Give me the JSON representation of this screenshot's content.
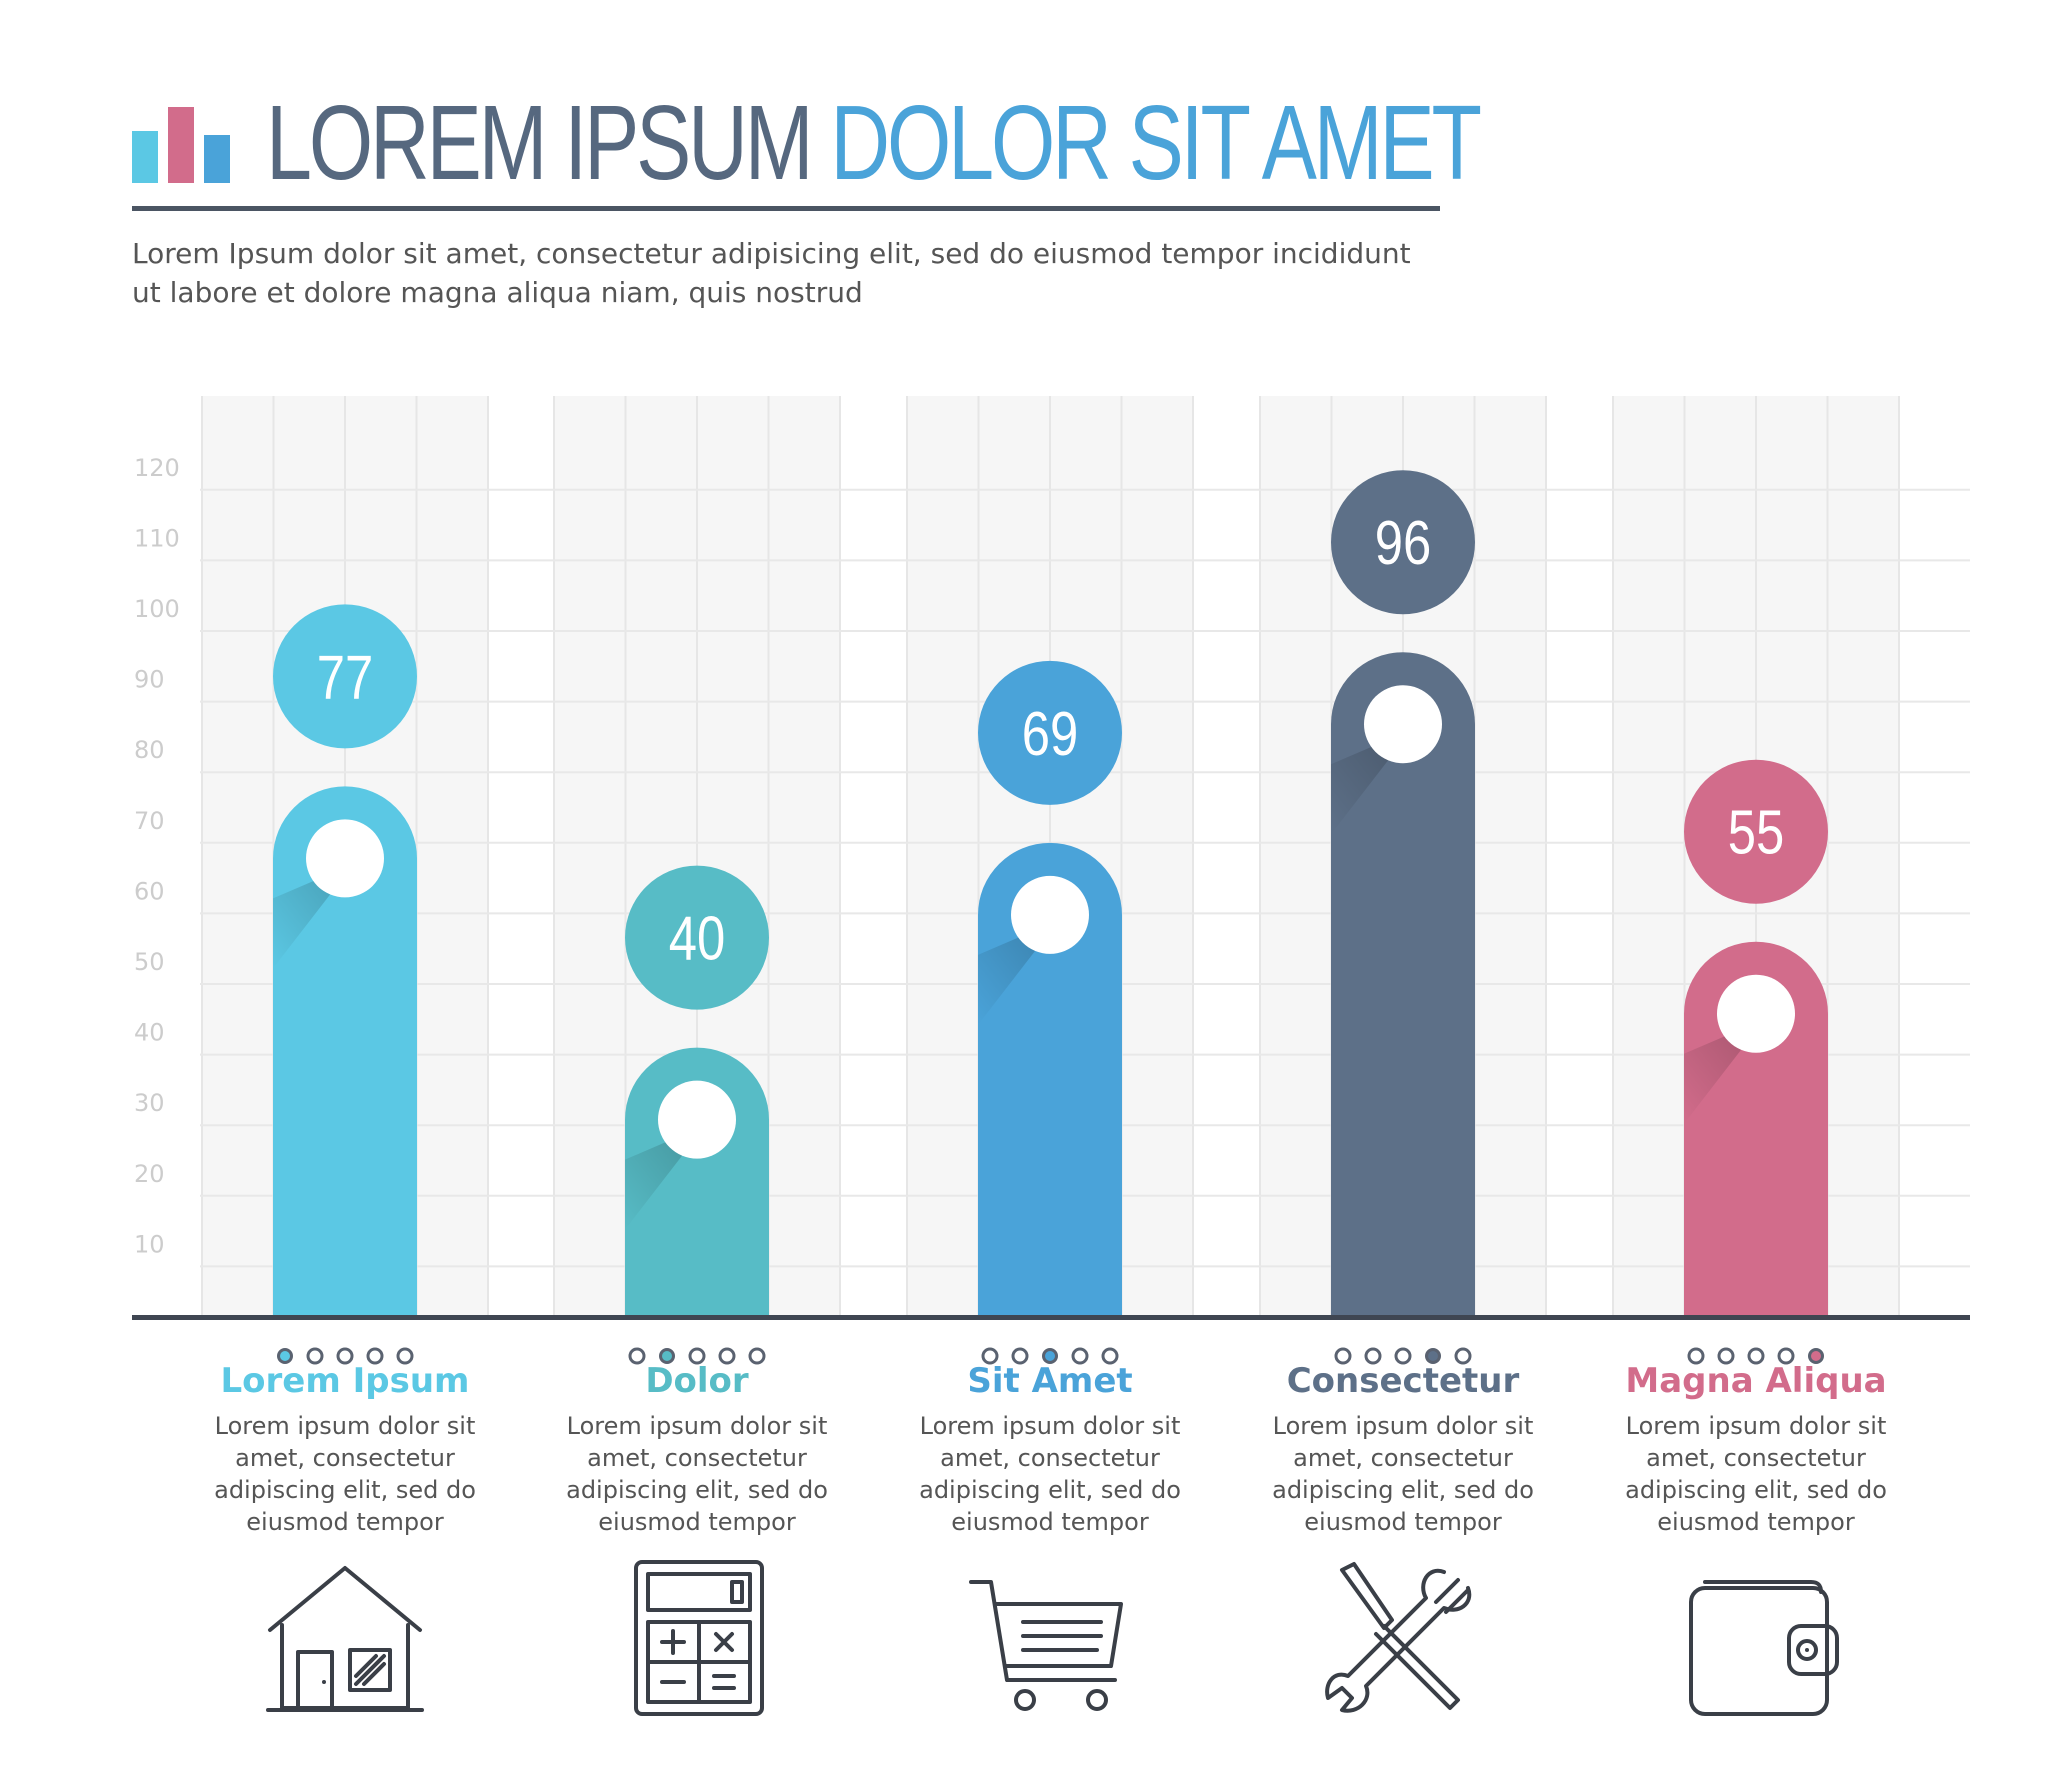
{
  "header": {
    "title_part1": "LOREM IPSUM",
    "title_part2": "DOLOR SIT AMET",
    "subtitle": "Lorem Ipsum dolor sit amet, consectetur adipisicing elit, sed do eiusmod tempor incididunt ut labore et dolore magna aliqua niam, quis nostrud",
    "logo_colors": [
      "#5bc8e4",
      "#d26c8b",
      "#4aa3d9"
    ]
  },
  "chart_data": {
    "type": "bar",
    "title": "LOREM IPSUM DOLOR SIT AMET",
    "categories": [
      "Lorem Ipsum",
      "Dolor",
      "Sit Amet",
      "Consectetur",
      "Magna Aliqua"
    ],
    "values": [
      77,
      40,
      69,
      96,
      55
    ],
    "colors": [
      "#5bc8e4",
      "#57bcc6",
      "#4aa3d9",
      "#5d7088",
      "#d26c8b"
    ],
    "yticks": [
      10,
      20,
      30,
      40,
      50,
      60,
      70,
      80,
      90,
      100,
      110,
      120
    ],
    "ylim": [
      0,
      130
    ],
    "grid": true,
    "legend": "none"
  },
  "items": [
    {
      "title": "Lorem Ipsum",
      "desc": [
        "Lorem ipsum dolor sit",
        "amet, consectetur",
        "adipiscing elit, sed do",
        "eiusmod tempor"
      ],
      "icon": "house-icon",
      "active_dot": 0
    },
    {
      "title": "Dolor",
      "desc": [
        "Lorem ipsum dolor sit",
        "amet, consectetur",
        "adipiscing elit, sed do",
        "eiusmod tempor"
      ],
      "icon": "calculator-icon",
      "active_dot": 1
    },
    {
      "title": "Sit Amet",
      "desc": [
        "Lorem ipsum dolor sit",
        "amet, consectetur",
        "adipiscing elit, sed do",
        "eiusmod tempor"
      ],
      "icon": "shopping-cart-icon",
      "active_dot": 2
    },
    {
      "title": "Consectetur",
      "desc": [
        "Lorem ipsum dolor sit",
        "amet, consectetur",
        "adipiscing elit, sed do",
        "eiusmod tempor"
      ],
      "icon": "tools-icon",
      "active_dot": 3
    },
    {
      "title": "Magna Aliqua",
      "desc": [
        "Lorem ipsum dolor sit",
        "amet, consectetur",
        "adipiscing elit, sed do",
        "eiusmod tempor"
      ],
      "icon": "wallet-icon",
      "active_dot": 4
    }
  ]
}
